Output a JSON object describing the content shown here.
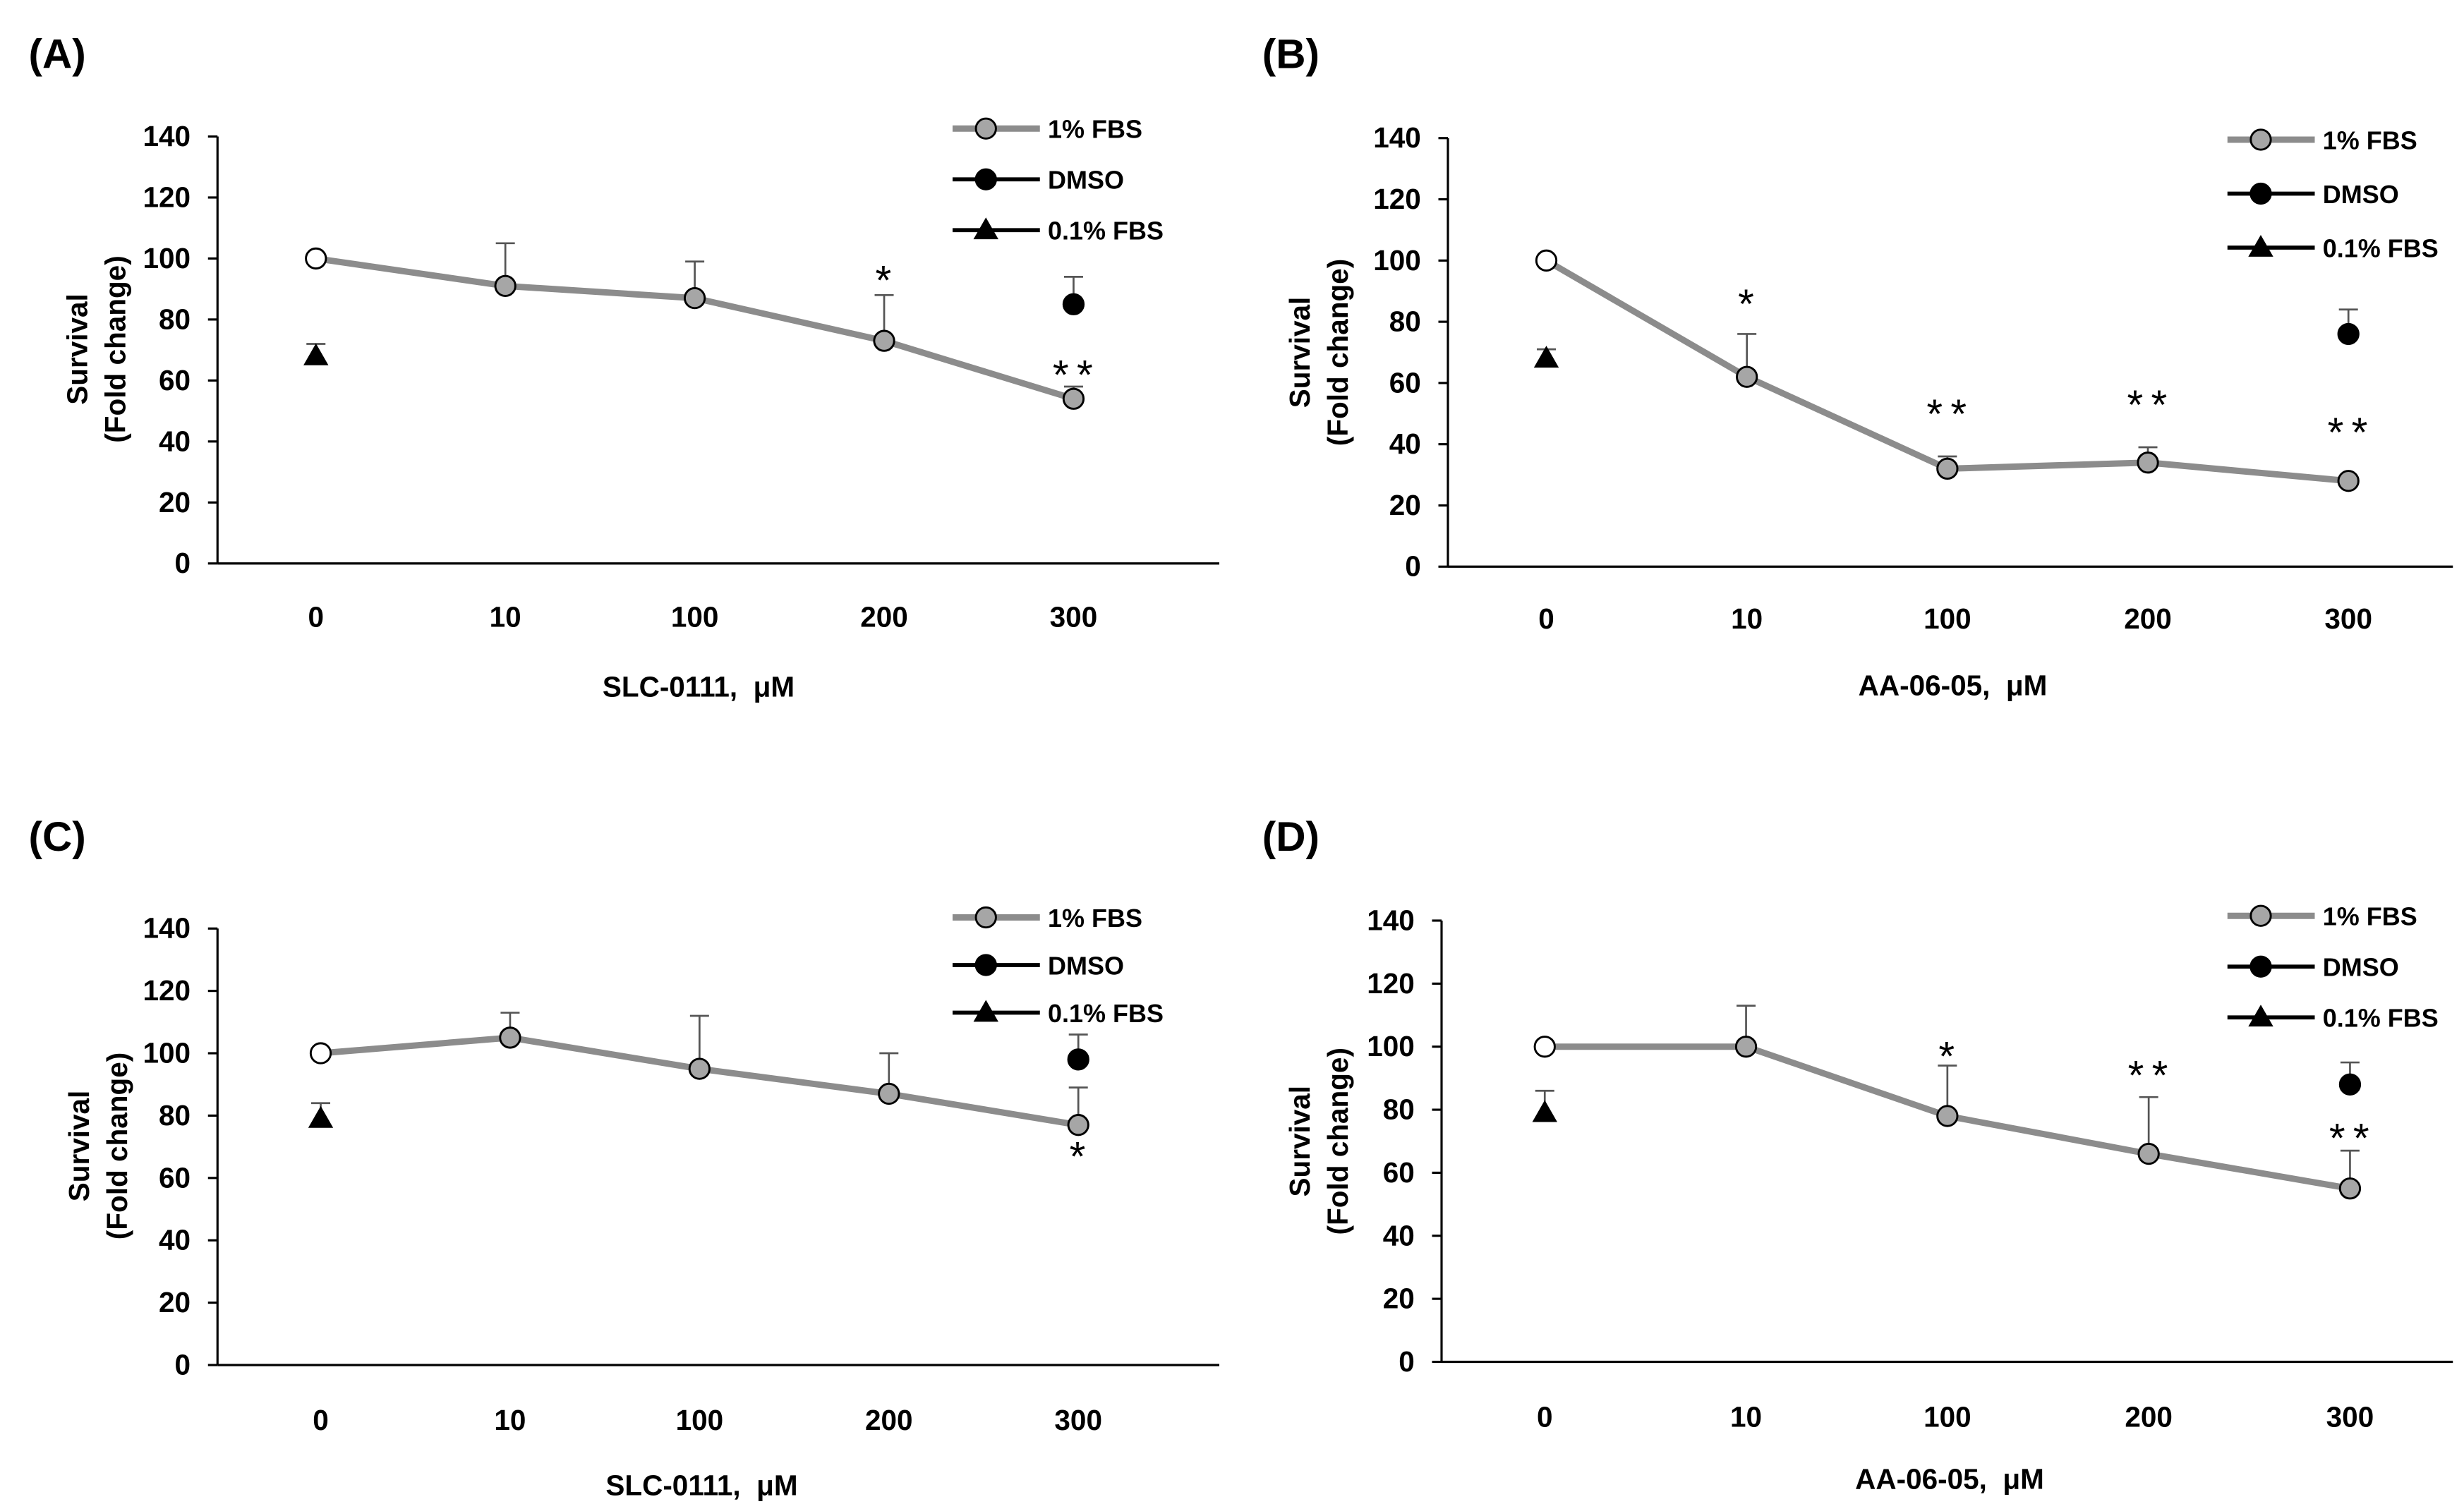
{
  "chart_data": [
    {
      "panel_label": "(A)",
      "type": "line",
      "categories": [
        "0",
        "10",
        "100",
        "200",
        "300"
      ],
      "xlabel": "SLC-0111,  μM",
      "ylabel": [
        "Survival",
        "(Fold change)"
      ],
      "ylim": [
        0,
        140
      ],
      "yticks": [
        0,
        20,
        40,
        60,
        80,
        100,
        120,
        140
      ],
      "grid": false,
      "legend": "top-right",
      "series": [
        {
          "name": "1% FBS",
          "color": "#8c8c8c",
          "marker": "circle",
          "marker_fill": "#a6a6a6",
          "first_marker_fill": "#ffffff",
          "values": [
            100,
            91,
            87,
            73,
            54
          ],
          "error_upper": [
            null,
            105,
            99,
            88,
            58
          ]
        },
        {
          "name": "DMSO",
          "color": "#000000",
          "marker": "circle",
          "marker_fill": "#000000",
          "x": [
            "300"
          ],
          "values": [
            85
          ],
          "error_upper": [
            94
          ]
        },
        {
          "name": "0.1% FBS",
          "color": "#000000",
          "marker": "triangle",
          "marker_fill": "#000000",
          "x": [
            "0"
          ],
          "values": [
            68
          ],
          "error_upper": [
            72
          ]
        }
      ],
      "annotations": [
        {
          "x": "200",
          "y": 96,
          "text": "*"
        },
        {
          "x": "300",
          "y": 65,
          "text": "**"
        }
      ]
    },
    {
      "panel_label": "(B)",
      "type": "line",
      "categories": [
        "0",
        "10",
        "100",
        "200",
        "300"
      ],
      "xlabel": "AA-06-05,  μM",
      "ylabel": [
        "Survival",
        "(Fold change)"
      ],
      "ylim": [
        0,
        140
      ],
      "yticks": [
        0,
        20,
        40,
        60,
        80,
        100,
        120,
        140
      ],
      "grid": false,
      "legend": "top-right",
      "series": [
        {
          "name": "1% FBS",
          "color": "#8c8c8c",
          "marker": "circle",
          "marker_fill": "#a6a6a6",
          "first_marker_fill": "#ffffff",
          "values": [
            100,
            62,
            32,
            34,
            28
          ],
          "error_upper": [
            null,
            76,
            36,
            39,
            29
          ]
        },
        {
          "name": "DMSO",
          "color": "#000000",
          "marker": "circle",
          "marker_fill": "#000000",
          "x": [
            "300"
          ],
          "values": [
            76
          ],
          "error_upper": [
            84
          ]
        },
        {
          "name": "0.1% FBS",
          "color": "#000000",
          "marker": "triangle",
          "marker_fill": "#000000",
          "x": [
            "0"
          ],
          "values": [
            68
          ],
          "error_upper": [
            71
          ]
        }
      ],
      "annotations": [
        {
          "x": "10",
          "y": 89,
          "text": "*"
        },
        {
          "x": "100",
          "y": 53,
          "text": "**"
        },
        {
          "x": "200",
          "y": 56,
          "text": "**"
        },
        {
          "x": "300",
          "y": 47,
          "text": "**"
        }
      ]
    },
    {
      "panel_label": "(C)",
      "type": "line",
      "categories": [
        "0",
        "10",
        "100",
        "200",
        "300"
      ],
      "xlabel": "SLC-0111,  μM",
      "ylabel": [
        "Survival",
        "(Fold change)"
      ],
      "ylim": [
        0,
        140
      ],
      "yticks": [
        0,
        20,
        40,
        60,
        80,
        100,
        120,
        140
      ],
      "grid": false,
      "legend": "top-right",
      "series": [
        {
          "name": "1% FBS",
          "color": "#8c8c8c",
          "marker": "circle",
          "marker_fill": "#a6a6a6",
          "first_marker_fill": "#ffffff",
          "values": [
            100,
            105,
            95,
            87,
            77
          ],
          "error_upper": [
            null,
            113,
            112,
            100,
            89
          ]
        },
        {
          "name": "DMSO",
          "color": "#000000",
          "marker": "circle",
          "marker_fill": "#000000",
          "x": [
            "300"
          ],
          "values": [
            98
          ],
          "error_upper": [
            106
          ]
        },
        {
          "name": "0.1% FBS",
          "color": "#000000",
          "marker": "triangle",
          "marker_fill": "#000000",
          "x": [
            "0"
          ],
          "values": [
            79
          ],
          "error_upper": [
            84
          ]
        }
      ],
      "annotations": [
        {
          "x": "300",
          "y": 70,
          "text": "*"
        }
      ]
    },
    {
      "panel_label": "(D)",
      "type": "line",
      "categories": [
        "0",
        "10",
        "100",
        "200",
        "300"
      ],
      "xlabel": "AA-06-05,  μM",
      "ylabel": [
        "Survival",
        "(Fold change)"
      ],
      "ylim": [
        0,
        140
      ],
      "yticks": [
        0,
        20,
        40,
        60,
        80,
        100,
        120,
        140
      ],
      "grid": false,
      "legend": "top-right",
      "series": [
        {
          "name": "1% FBS",
          "color": "#8c8c8c",
          "marker": "circle",
          "marker_fill": "#a6a6a6",
          "first_marker_fill": "#ffffff",
          "values": [
            100,
            100,
            78,
            66,
            55
          ],
          "error_upper": [
            null,
            113,
            94,
            84,
            67
          ]
        },
        {
          "name": "DMSO",
          "color": "#000000",
          "marker": "circle",
          "marker_fill": "#000000",
          "x": [
            "300"
          ],
          "values": [
            88
          ],
          "error_upper": [
            95
          ]
        },
        {
          "name": "0.1% FBS",
          "color": "#000000",
          "marker": "triangle",
          "marker_fill": "#000000",
          "x": [
            "0"
          ],
          "values": [
            79
          ],
          "error_upper": [
            86
          ]
        }
      ],
      "annotations": [
        {
          "x": "100",
          "y": 100,
          "text": "*"
        },
        {
          "x": "200",
          "y": 94,
          "text": "**"
        },
        {
          "x": "300",
          "y": 74,
          "text": "**"
        }
      ]
    }
  ]
}
